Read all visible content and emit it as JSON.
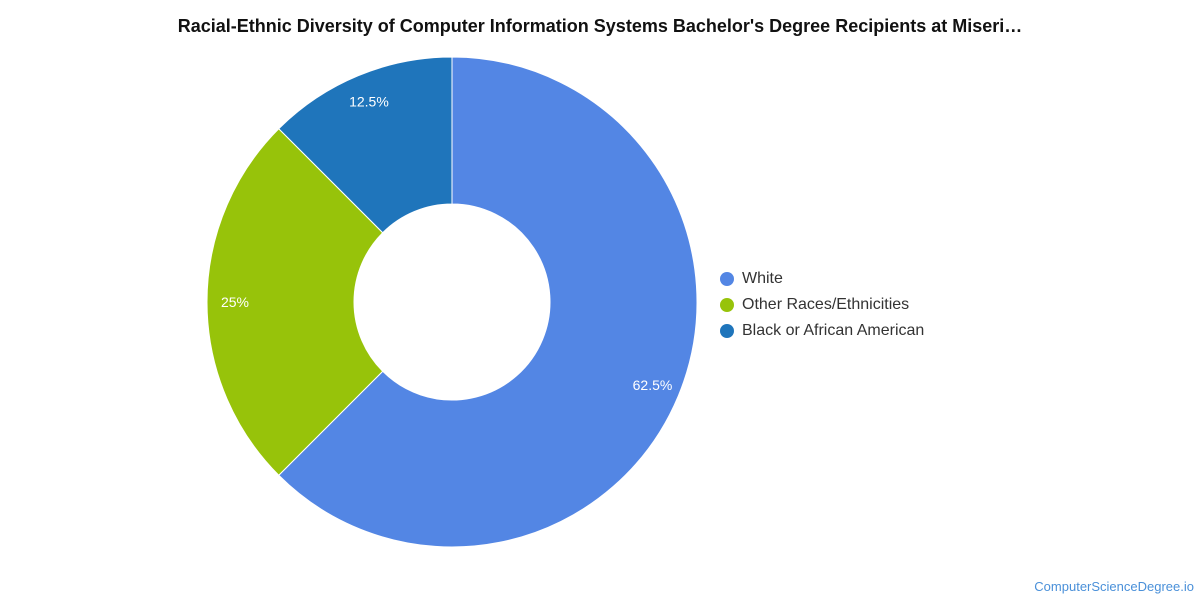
{
  "chart_data": {
    "type": "pie",
    "title": "Racial-Ethnic Diversity of Computer Information Systems Bachelor's Degree Recipients at Miseri…",
    "donut": true,
    "legend_position": "right",
    "slices": [
      {
        "label": "White",
        "value": 62.5,
        "display": "62.5%",
        "color": "#5386E4"
      },
      {
        "label": "Other Races/Ethnicities",
        "value": 25,
        "display": "25%",
        "color": "#97C30A"
      },
      {
        "label": "Black or African American",
        "value": 12.5,
        "display": "12.5%",
        "color": "#1F75BB"
      }
    ]
  },
  "footer": {
    "source": "ComputerScienceDegree.io"
  }
}
